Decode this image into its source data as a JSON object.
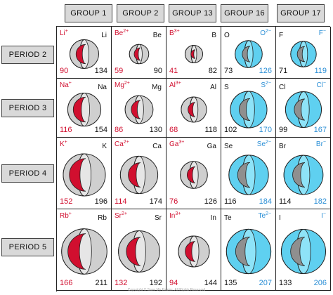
{
  "colors": {
    "cation": "#d10f2f",
    "atom": "#cfcfcf",
    "nonmetal_atom": "#8f8f8f",
    "anion": "#5fd0f0",
    "label_red": "#d10f2f",
    "label_blue": "#2b8fd6"
  },
  "groups": [
    "GROUP 1",
    "GROUP 2",
    "GROUP 13",
    "GROUP 16",
    "GROUP 17"
  ],
  "periods": [
    "PERIOD 2",
    "PERIOD 3",
    "PERIOD 4",
    "PERIOD 5"
  ],
  "cells": [
    [
      {
        "type": "cation",
        "ion": "Li",
        "charge": "+",
        "atom": "Li",
        "ion_radius": 90,
        "atom_radius": 134
      },
      {
        "type": "cation",
        "ion": "Be",
        "charge": "2+",
        "atom": "Be",
        "ion_radius": 59,
        "atom_radius": 90
      },
      {
        "type": "cation",
        "ion": "B",
        "charge": "3+",
        "atom": "B",
        "ion_radius": 41,
        "atom_radius": 82
      },
      {
        "type": "anion",
        "ion": "O",
        "charge": "2−",
        "atom": "O",
        "ion_radius": 126,
        "atom_radius": 73
      },
      {
        "type": "anion",
        "ion": "F",
        "charge": "−",
        "atom": "F",
        "ion_radius": 119,
        "atom_radius": 71
      }
    ],
    [
      {
        "type": "cation",
        "ion": "Na",
        "charge": "+",
        "atom": "Na",
        "ion_radius": 116,
        "atom_radius": 154
      },
      {
        "type": "cation",
        "ion": "Mg",
        "charge": "2+",
        "atom": "Mg",
        "ion_radius": 86,
        "atom_radius": 130
      },
      {
        "type": "cation",
        "ion": "Al",
        "charge": "3+",
        "atom": "Al",
        "ion_radius": 68,
        "atom_radius": 118
      },
      {
        "type": "anion",
        "ion": "S",
        "charge": "2−",
        "atom": "S",
        "ion_radius": 170,
        "atom_radius": 102
      },
      {
        "type": "anion",
        "ion": "Cl",
        "charge": "−",
        "atom": "Cl",
        "ion_radius": 167,
        "atom_radius": 99
      }
    ],
    [
      {
        "type": "cation",
        "ion": "K",
        "charge": "+",
        "atom": "K",
        "ion_radius": 152,
        "atom_radius": 196
      },
      {
        "type": "cation",
        "ion": "Ca",
        "charge": "2+",
        "atom": "Ca",
        "ion_radius": 114,
        "atom_radius": 174
      },
      {
        "type": "cation",
        "ion": "Ga",
        "charge": "3+",
        "atom": "Ga",
        "ion_radius": 76,
        "atom_radius": 126
      },
      {
        "type": "anion",
        "ion": "Se",
        "charge": "2−",
        "atom": "Se",
        "ion_radius": 184,
        "atom_radius": 116
      },
      {
        "type": "anion",
        "ion": "Br",
        "charge": "−",
        "atom": "Br",
        "ion_radius": 182,
        "atom_radius": 114
      }
    ],
    [
      {
        "type": "cation",
        "ion": "Rb",
        "charge": "+",
        "atom": "Rb",
        "ion_radius": 166,
        "atom_radius": 211
      },
      {
        "type": "cation",
        "ion": "Sr",
        "charge": "2+",
        "atom": "Sr",
        "ion_radius": 132,
        "atom_radius": 192
      },
      {
        "type": "cation",
        "ion": "In",
        "charge": "3+",
        "atom": "In",
        "ion_radius": 94,
        "atom_radius": 144
      },
      {
        "type": "anion",
        "ion": "Te",
        "charge": "2−",
        "atom": "Te",
        "ion_radius": 207,
        "atom_radius": 135
      },
      {
        "type": "anion",
        "ion": "I",
        "charge": "−",
        "atom": "I",
        "ion_radius": 206,
        "atom_radius": 133
      }
    ]
  ],
  "footer": "Copyright © Save My Exams. All Rights Reserved"
}
